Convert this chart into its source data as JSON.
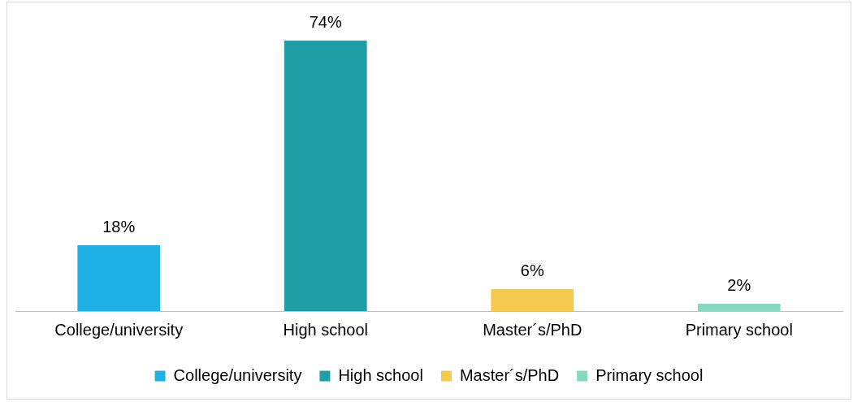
{
  "chart_data": {
    "type": "bar",
    "categories": [
      "College/university",
      "High school",
      "Master´s/PhD",
      "Primary school"
    ],
    "series": [
      {
        "name": "College/university",
        "color": "#1fb0e6",
        "values": [
          18,
          null,
          null,
          null
        ],
        "value_labels": [
          "18%",
          null,
          null,
          null
        ]
      },
      {
        "name": "High school",
        "color": "#1f9ea5",
        "values": [
          null,
          74,
          null,
          null
        ],
        "value_labels": [
          null,
          "74%",
          null,
          null
        ]
      },
      {
        "name": "Master´s/PhD",
        "color": "#f5c94e",
        "values": [
          null,
          null,
          6,
          null
        ],
        "value_labels": [
          null,
          null,
          "6%",
          null
        ]
      },
      {
        "name": "Primary school",
        "color": "#86d8bf",
        "values": [
          null,
          null,
          null,
          2
        ],
        "value_labels": [
          null,
          null,
          null,
          "2%"
        ]
      }
    ],
    "legend": "bottom",
    "grid": false
  }
}
